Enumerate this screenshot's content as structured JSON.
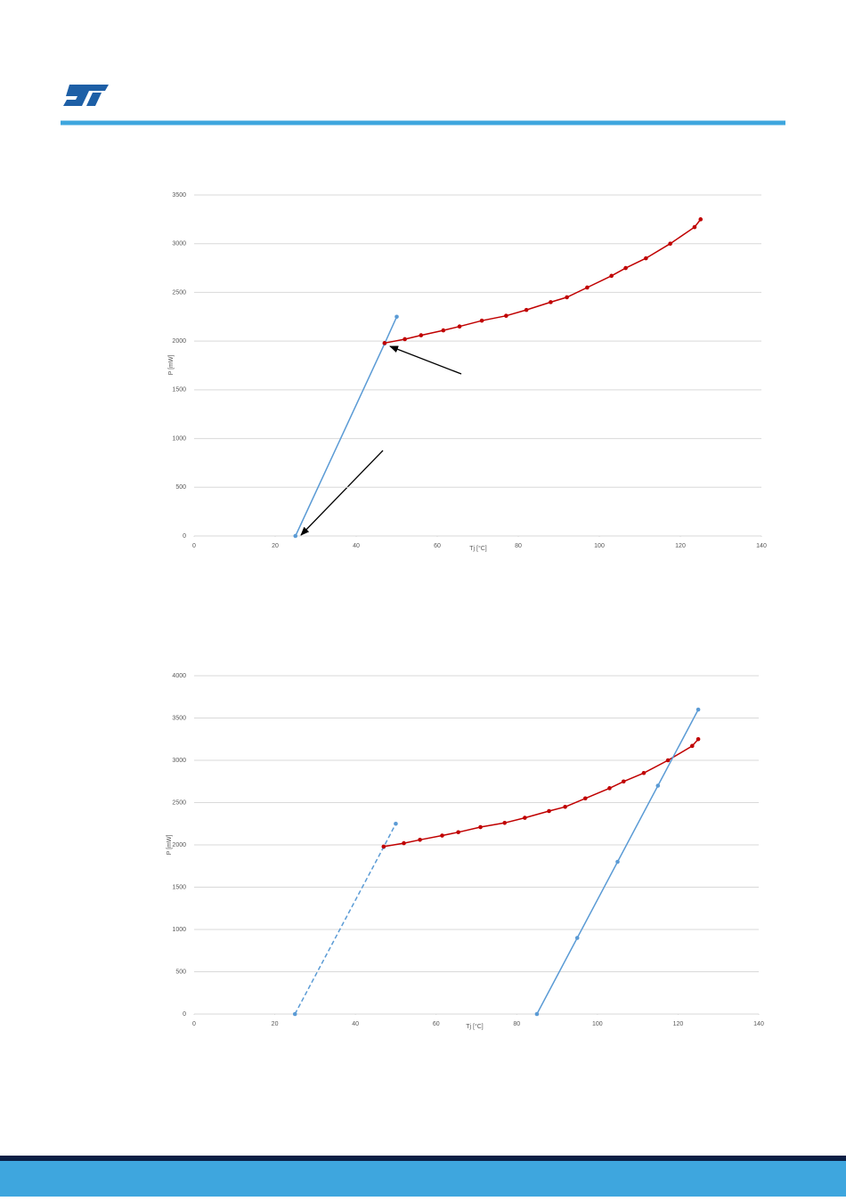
{
  "chart_data": [
    {
      "type": "line",
      "x_label": "Tj [°C]",
      "y_label": "P [mW]",
      "xlim": [
        0,
        140
      ],
      "xticks": [
        0,
        20,
        40,
        60,
        80,
        100,
        120,
        140
      ],
      "ylim": [
        0,
        3500
      ],
      "yticks": [
        0,
        500,
        1000,
        1500,
        2000,
        2500,
        3000,
        3500
      ],
      "grid": true,
      "series": [
        {
          "color": "#5b9bd5",
          "line_style": "solid",
          "x": [
            25,
            47,
            50
          ],
          "values": [
            0,
            1975,
            2250
          ]
        },
        {
          "color": "#c00000",
          "line_style": "solid",
          "x": [
            47,
            52,
            56,
            61.5,
            65.5,
            71,
            77,
            82,
            88,
            92,
            97,
            103,
            106.5,
            111.5,
            117.5,
            123.5,
            125
          ],
          "values": [
            1980,
            2020,
            2060,
            2110,
            2150,
            2210,
            2260,
            2320,
            2400,
            2450,
            2550,
            2670,
            2750,
            2850,
            3000,
            3170,
            3250
          ]
        }
      ]
    },
    {
      "type": "line",
      "x_label": "Tj [°C]",
      "y_label": "P [mW]",
      "xlim": [
        0,
        140
      ],
      "xticks": [
        0,
        20,
        40,
        60,
        80,
        100,
        120,
        140
      ],
      "ylim": [
        0,
        4000
      ],
      "yticks": [
        0,
        500,
        1000,
        1500,
        2000,
        2500,
        3000,
        3500,
        4000
      ],
      "grid": true,
      "series": [
        {
          "color": "#5b9bd5",
          "line_style": "dashed",
          "x": [
            25,
            47,
            50
          ],
          "values": [
            0,
            1975,
            2250
          ]
        },
        {
          "color": "#c00000",
          "line_style": "solid",
          "x": [
            47,
            52,
            56,
            61.5,
            65.5,
            71,
            77,
            82,
            88,
            92,
            97,
            103,
            106.5,
            111.5,
            117.5,
            123.5,
            125
          ],
          "values": [
            1980,
            2020,
            2060,
            2110,
            2150,
            2210,
            2260,
            2320,
            2400,
            2450,
            2550,
            2670,
            2750,
            2850,
            3000,
            3170,
            3250
          ]
        },
        {
          "color": "#5b9bd5",
          "line_style": "solid",
          "x": [
            85,
            95,
            105,
            115,
            125
          ],
          "values": [
            0,
            900,
            1800,
            2700,
            3600
          ]
        }
      ]
    }
  ]
}
